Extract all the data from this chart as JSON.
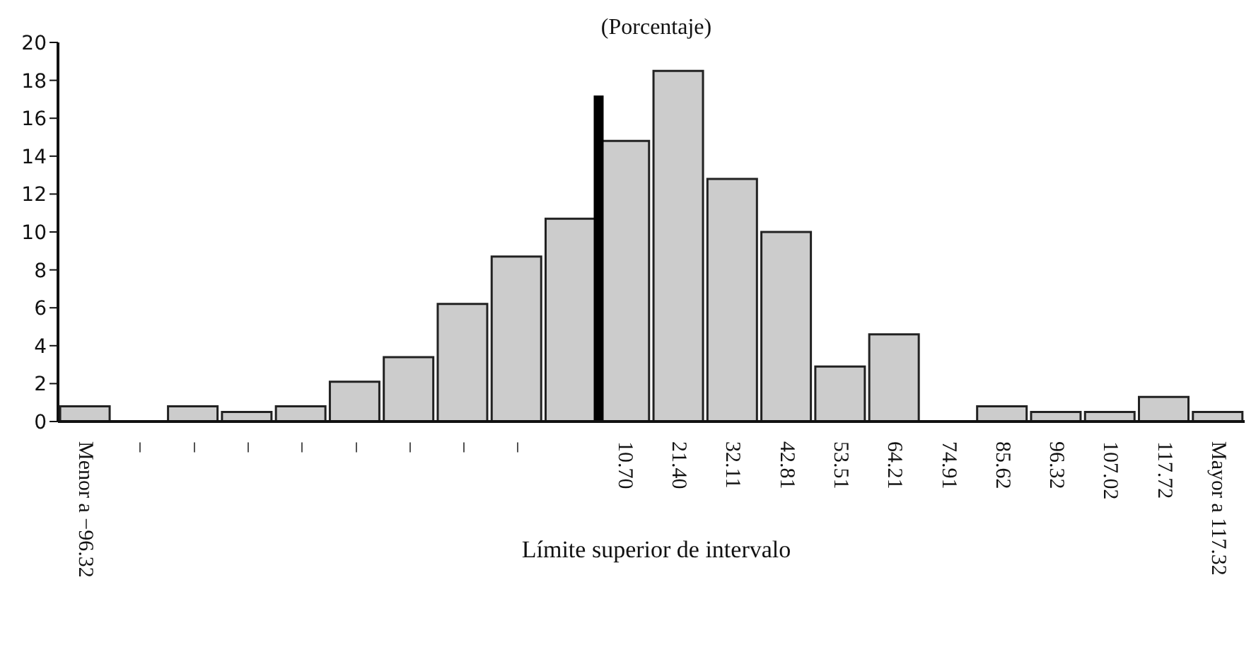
{
  "chart_data": {
    "type": "bar",
    "title": "(Porcentaje)",
    "xlabel": "Límite superior de intervalo",
    "categories": [
      "Menor a −96.32",
      "−",
      "−",
      "−",
      "−",
      "−",
      "−",
      "−",
      "−",
      null,
      "10.70",
      "21.40",
      "32.11",
      "42.81",
      "53.51",
      "64.21",
      "74.91",
      "85.62",
      "96.32",
      "107.02",
      "117.72",
      "Mayor a 117.32"
    ],
    "series": [
      {
        "color": "#cccccc",
        "values": [
          0.8,
          0,
          0.8,
          0.5,
          0.8,
          2.1,
          3.4,
          6.2,
          8.7,
          10.7,
          14.8,
          18.5,
          12.8,
          10.0,
          2.9,
          4.6,
          0,
          0.8,
          0.5,
          0.5,
          1.3,
          0.5
        ]
      },
      {
        "color": "#000000",
        "values": [
          null,
          null,
          null,
          null,
          null,
          null,
          null,
          null,
          null,
          17.2,
          null,
          null,
          null,
          null,
          null,
          null,
          null,
          null,
          null,
          null,
          null,
          null
        ]
      }
    ],
    "ylim": [
      0,
      20
    ],
    "yticks": [
      0,
      2,
      4,
      6,
      8,
      10,
      12,
      14,
      16,
      18,
      20
    ]
  }
}
